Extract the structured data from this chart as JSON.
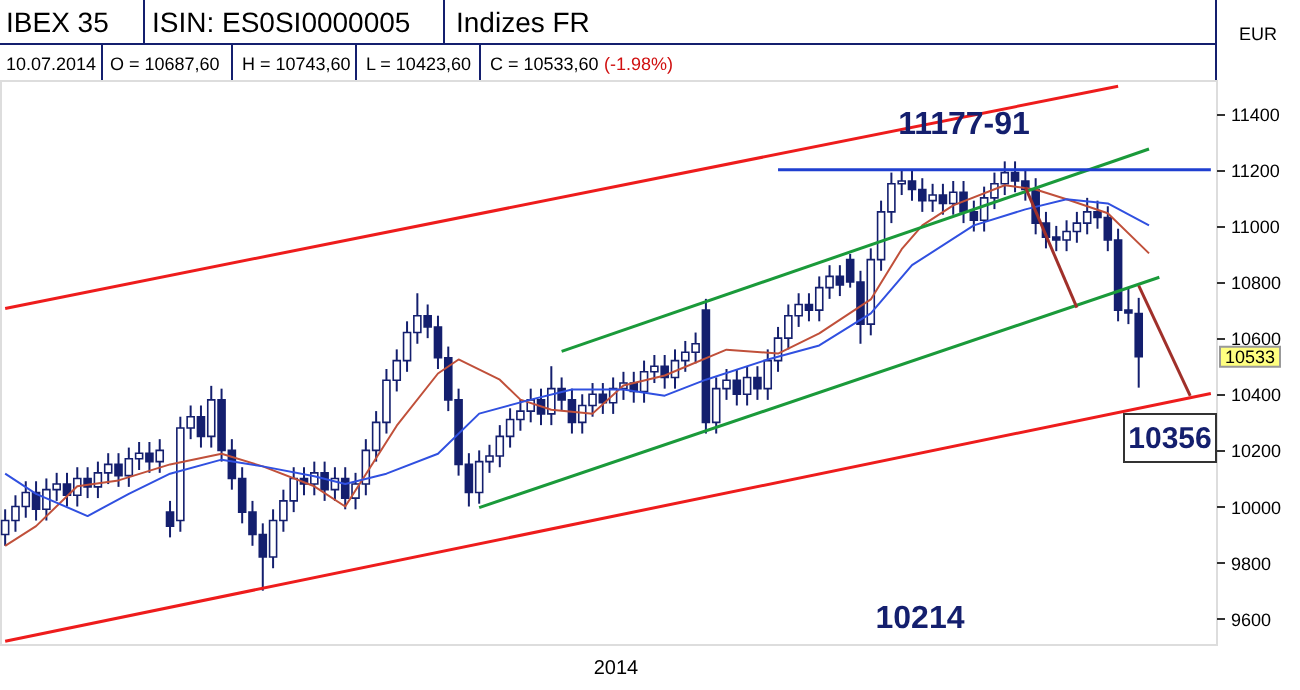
{
  "chart_data": {
    "type": "candlestick",
    "title": "IBEX 35",
    "subtitle": "ISIN: ES0SI0000005",
    "ylabel": "EUR",
    "annotations": [
      "Indizes FR",
      "10.07.2014",
      "O = 10687,60",
      "H = 10743,60",
      "L = 10423,60",
      "C = 10533,60",
      "(-1.98%)",
      "11177-91",
      "10356",
      "10214",
      "10533",
      "2014"
    ],
    "categories": [
      null,
      null,
      null,
      null,
      null,
      null,
      null,
      null,
      null,
      null,
      null,
      null,
      null,
      null,
      null,
      null,
      null,
      null,
      null,
      null,
      null,
      null,
      null,
      null,
      null,
      null,
      null,
      null,
      null,
      null,
      null,
      null,
      null,
      null,
      null,
      null,
      null,
      null,
      null,
      null,
      null,
      null,
      null,
      null,
      null,
      null,
      null,
      null,
      null,
      null,
      null,
      null,
      null,
      null,
      null,
      null,
      null,
      null,
      null,
      null,
      null,
      null,
      null,
      null,
      null,
      null,
      null,
      null,
      null,
      null,
      null,
      null,
      null,
      null,
      null,
      null,
      null,
      null,
      null,
      null,
      null,
      null,
      null,
      null,
      null,
      null,
      null,
      null,
      null,
      null,
      null,
      null,
      null,
      null,
      null,
      null,
      null,
      null,
      null,
      null,
      null,
      null,
      null,
      null,
      null,
      null,
      null,
      null,
      null,
      null,
      null,
      null,
      null,
      null,
      null,
      null,
      null,
      null
    ],
    "ohlc": [
      [
        9900,
        9990,
        9860,
        9950
      ],
      [
        9950,
        10040,
        9910,
        10000
      ],
      [
        10000,
        10090,
        9960,
        10050
      ],
      [
        10050,
        10090,
        9950,
        9990
      ],
      [
        9990,
        10100,
        9950,
        10060
      ],
      [
        10060,
        10120,
        10020,
        10080
      ],
      [
        10080,
        10120,
        10000,
        10040
      ],
      [
        10040,
        10140,
        10000,
        10100
      ],
      [
        10100,
        10140,
        10030,
        10070
      ],
      [
        10070,
        10160,
        10030,
        10120
      ],
      [
        10120,
        10190,
        10080,
        10150
      ],
      [
        10150,
        10190,
        10070,
        10110
      ],
      [
        10110,
        10210,
        10070,
        10170
      ],
      [
        10170,
        10230,
        10130,
        10190
      ],
      [
        10190,
        10230,
        10120,
        10160
      ],
      [
        10160,
        10240,
        10120,
        10200
      ],
      [
        9980,
        10020,
        9890,
        9930
      ],
      [
        9950,
        10320,
        9910,
        10280
      ],
      [
        10280,
        10360,
        10240,
        10320
      ],
      [
        10320,
        10360,
        10210,
        10250
      ],
      [
        10250,
        10430,
        10210,
        10380
      ],
      [
        10380,
        10420,
        10160,
        10200
      ],
      [
        10200,
        10240,
        10060,
        10100
      ],
      [
        10100,
        10140,
        9940,
        9980
      ],
      [
        9980,
        10020,
        9860,
        9900
      ],
      [
        9900,
        9940,
        9700,
        9820
      ],
      [
        9820,
        9990,
        9780,
        9950
      ],
      [
        9950,
        10060,
        9910,
        10020
      ],
      [
        10020,
        10140,
        9980,
        10100
      ],
      [
        10100,
        10140,
        10040,
        10080
      ],
      [
        10080,
        10160,
        10040,
        10120
      ],
      [
        10120,
        10160,
        10020,
        10060
      ],
      [
        10060,
        10140,
        10020,
        10100
      ],
      [
        10100,
        10140,
        9990,
        10030
      ],
      [
        10030,
        10120,
        9990,
        10080
      ],
      [
        10080,
        10240,
        10040,
        10200
      ],
      [
        10200,
        10340,
        10160,
        10300
      ],
      [
        10300,
        10490,
        10260,
        10450
      ],
      [
        10450,
        10560,
        10410,
        10520
      ],
      [
        10520,
        10660,
        10480,
        10620
      ],
      [
        10620,
        10760,
        10580,
        10680
      ],
      [
        10680,
        10720,
        10600,
        10640
      ],
      [
        10640,
        10680,
        10490,
        10530
      ],
      [
        10530,
        10570,
        10340,
        10380
      ],
      [
        10380,
        10420,
        10110,
        10150
      ],
      [
        10150,
        10190,
        10000,
        10050
      ],
      [
        10050,
        10200,
        10010,
        10160
      ],
      [
        10160,
        10220,
        10120,
        10180
      ],
      [
        10180,
        10290,
        10140,
        10250
      ],
      [
        10250,
        10350,
        10210,
        10310
      ],
      [
        10310,
        10380,
        10270,
        10340
      ],
      [
        10340,
        10420,
        10300,
        10380
      ],
      [
        10380,
        10420,
        10290,
        10330
      ],
      [
        10330,
        10500,
        10290,
        10420
      ],
      [
        10420,
        10460,
        10340,
        10380
      ],
      [
        10380,
        10420,
        10260,
        10300
      ],
      [
        10300,
        10400,
        10260,
        10360
      ],
      [
        10360,
        10440,
        10320,
        10400
      ],
      [
        10400,
        10440,
        10330,
        10370
      ],
      [
        10370,
        10460,
        10330,
        10420
      ],
      [
        10420,
        10480,
        10380,
        10440
      ],
      [
        10440,
        10480,
        10370,
        10410
      ],
      [
        10410,
        10520,
        10370,
        10480
      ],
      [
        10480,
        10540,
        10440,
        10500
      ],
      [
        10500,
        10540,
        10420,
        10460
      ],
      [
        10460,
        10560,
        10420,
        10520
      ],
      [
        10520,
        10590,
        10480,
        10550
      ],
      [
        10550,
        10620,
        10510,
        10580
      ],
      [
        10700,
        10740,
        10260,
        10300
      ],
      [
        10300,
        10460,
        10260,
        10420
      ],
      [
        10420,
        10490,
        10380,
        10450
      ],
      [
        10450,
        10490,
        10360,
        10400
      ],
      [
        10400,
        10500,
        10360,
        10460
      ],
      [
        10460,
        10500,
        10380,
        10420
      ],
      [
        10420,
        10560,
        10380,
        10520
      ],
      [
        10520,
        10640,
        10480,
        10600
      ],
      [
        10600,
        10720,
        10560,
        10680
      ],
      [
        10680,
        10760,
        10640,
        10720
      ],
      [
        10720,
        10760,
        10660,
        10700
      ],
      [
        10700,
        10820,
        10660,
        10780
      ],
      [
        10780,
        10860,
        10740,
        10820
      ],
      [
        10820,
        10860,
        10750,
        10790
      ],
      [
        10880,
        10900,
        10780,
        10800
      ],
      [
        10800,
        10840,
        10580,
        10650
      ],
      [
        10650,
        10920,
        10610,
        10880
      ],
      [
        10880,
        11090,
        10840,
        11050
      ],
      [
        11050,
        11190,
        11010,
        11150
      ],
      [
        11150,
        11200,
        11110,
        11160
      ],
      [
        11160,
        11200,
        11090,
        11130
      ],
      [
        11130,
        11170,
        11050,
        11090
      ],
      [
        11090,
        11150,
        11050,
        11110
      ],
      [
        11110,
        11150,
        11040,
        11080
      ],
      [
        11080,
        11160,
        11040,
        11120
      ],
      [
        11120,
        11160,
        11010,
        11050
      ],
      [
        11050,
        11090,
        10980,
        11020
      ],
      [
        11020,
        11140,
        10980,
        11100
      ],
      [
        11100,
        11190,
        11060,
        11150
      ],
      [
        11150,
        11230,
        11110,
        11190
      ],
      [
        11190,
        11230,
        11120,
        11160
      ],
      [
        11160,
        11200,
        11090,
        11130
      ],
      [
        11130,
        11170,
        10970,
        11010
      ],
      [
        11010,
        11050,
        10920,
        10960
      ],
      [
        10960,
        11000,
        10910,
        10950
      ],
      [
        10950,
        11020,
        10910,
        10980
      ],
      [
        10980,
        11050,
        10940,
        11010
      ],
      [
        11010,
        11100,
        10970,
        11050
      ],
      [
        11050,
        11090,
        10990,
        11030
      ],
      [
        11030,
        11070,
        10910,
        10950
      ],
      [
        10950,
        10990,
        10660,
        10700
      ],
      [
        10700,
        10780,
        10650,
        10690
      ],
      [
        10687.6,
        10743.6,
        10423.6,
        10533.6
      ],
      null,
      null,
      null,
      null,
      null,
      null,
      null
    ],
    "series": [
      {
        "type": "line",
        "color": "#c0503a",
        "values": [
          9860,
          null,
          null,
          9930,
          null,
          null,
          null,
          10072,
          null,
          null,
          null,
          10093,
          null,
          null,
          null,
          null,
          10150,
          null,
          null,
          null,
          null,
          10188,
          null,
          null,
          null,
          10143,
          null,
          null,
          null,
          null,
          10072,
          null,
          null,
          10000,
          null,
          10115,
          null,
          null,
          10288,
          null,
          null,
          null,
          10474,
          null,
          10524,
          null,
          null,
          null,
          10452,
          null,
          10381,
          null,
          null,
          10345,
          null,
          null,
          null,
          10331,
          null,
          null,
          10431,
          null,
          null,
          null,
          10467,
          null,
          null,
          null,
          null,
          null,
          10559,
          null,
          null,
          null,
          null,
          10545,
          null,
          null,
          null,
          10617,
          null,
          null,
          null,
          null,
          10738,
          null,
          null,
          10917,
          null,
          11002,
          null,
          null,
          11073,
          null,
          null,
          null,
          null,
          11145,
          null,
          null,
          11130,
          null,
          null,
          11095,
          null,
          null,
          null,
          11045,
          null,
          null,
          null,
          10902,
          null,
          null,
          null,
          null,
          null,
          null
        ]
      },
      {
        "type": "line",
        "color": "#3050e0",
        "values": [
          10117,
          null,
          null,
          10045,
          null,
          null,
          null,
          null,
          9966,
          null,
          null,
          null,
          10045,
          null,
          null,
          null,
          10117,
          null,
          null,
          null,
          null,
          10167,
          null,
          null,
          null,
          10143,
          null,
          null,
          null,
          null,
          10108,
          null,
          null,
          10080,
          null,
          null,
          null,
          10117,
          null,
          null,
          null,
          null,
          10188,
          null,
          null,
          null,
          10331,
          null,
          null,
          null,
          null,
          10381,
          null,
          null,
          null,
          10417,
          null,
          null,
          null,
          null,
          10417,
          null,
          null,
          null,
          10395,
          null,
          null,
          null,
          10452,
          null,
          null,
          null,
          null,
          null,
          10524,
          null,
          null,
          null,
          null,
          10574,
          null,
          null,
          null,
          null,
          10688,
          null,
          null,
          null,
          10860,
          null,
          null,
          null,
          null,
          null,
          11002,
          null,
          null,
          null,
          null,
          11059,
          null,
          null,
          null,
          11095,
          null,
          null,
          null,
          11080,
          null,
          null,
          null,
          11002,
          null,
          null,
          null,
          null,
          null,
          null
        ]
      },
      {
        "type": "line",
        "color": "#ee1c1c",
        "values": [
          10706,
          null,
          null,
          null,
          null,
          null,
          null,
          null,
          null,
          null,
          null,
          null,
          null,
          null,
          null,
          null,
          null,
          null,
          null,
          null,
          null,
          null,
          null,
          null,
          null,
          null,
          null,
          null,
          null,
          null,
          null,
          null,
          null,
          null,
          null,
          null,
          null,
          null,
          null,
          null,
          null,
          null,
          null,
          null,
          null,
          null,
          null,
          null,
          null,
          null,
          null,
          null,
          null,
          null,
          null,
          null,
          null,
          null,
          null,
          null,
          null,
          null,
          null,
          null,
          null,
          null,
          null,
          null,
          null,
          null,
          null,
          null,
          null,
          null,
          null,
          null,
          null,
          null,
          null,
          null,
          null,
          null,
          null,
          null,
          null,
          null,
          null,
          null,
          null,
          null,
          null,
          null,
          null,
          null,
          null,
          null,
          null,
          null,
          null,
          null,
          null,
          null,
          null,
          null,
          null,
          null,
          null,
          null,
          11498,
          null,
          null,
          null,
          null,
          null,
          null,
          null,
          null,
          null
        ]
      },
      {
        "type": "line",
        "color": "#ee1c1c",
        "values": [
          9520,
          null,
          null,
          null,
          null,
          null,
          null,
          null,
          null,
          null,
          null,
          null,
          null,
          null,
          null,
          null,
          null,
          null,
          null,
          null,
          null,
          null,
          null,
          null,
          null,
          null,
          null,
          null,
          null,
          null,
          null,
          null,
          null,
          null,
          null,
          null,
          null,
          null,
          null,
          null,
          null,
          null,
          null,
          null,
          null,
          null,
          null,
          null,
          null,
          null,
          null,
          null,
          null,
          null,
          null,
          null,
          null,
          null,
          null,
          null,
          null,
          null,
          null,
          null,
          null,
          null,
          null,
          null,
          null,
          null,
          null,
          null,
          null,
          null,
          null,
          null,
          null,
          null,
          null,
          null,
          null,
          null,
          null,
          null,
          null,
          null,
          null,
          null,
          null,
          null,
          null,
          null,
          null,
          null,
          null,
          null,
          null,
          null,
          null,
          null,
          null,
          null,
          null,
          null,
          null,
          null,
          null,
          null,
          null,
          null,
          null,
          null,
          null,
          null,
          null,
          null,
          null,
          10403
        ]
      },
      {
        "type": "line",
        "color": "#1a9a3a",
        "values": [
          null,
          null,
          null,
          null,
          null,
          null,
          null,
          null,
          null,
          null,
          null,
          null,
          null,
          null,
          null,
          null,
          null,
          null,
          null,
          null,
          null,
          null,
          null,
          null,
          null,
          null,
          null,
          null,
          null,
          null,
          null,
          null,
          null,
          null,
          null,
          null,
          null,
          null,
          null,
          null,
          null,
          null,
          null,
          null,
          null,
          null,
          9996,
          null,
          null,
          null,
          null,
          null,
          null,
          null,
          null,
          null,
          null,
          null,
          null,
          null,
          null,
          null,
          null,
          null,
          null,
          null,
          null,
          null,
          null,
          null,
          null,
          null,
          null,
          null,
          null,
          null,
          null,
          null,
          null,
          null,
          null,
          null,
          null,
          null,
          null,
          null,
          null,
          null,
          null,
          null,
          null,
          null,
          null,
          null,
          null,
          null,
          null,
          null,
          null,
          null,
          null,
          null,
          null,
          null,
          null,
          null,
          null,
          null,
          null,
          null,
          null,
          null,
          10817,
          null,
          null,
          null,
          null,
          null
        ]
      },
      {
        "type": "line",
        "color": "#1a9a3a",
        "values": [
          null,
          null,
          null,
          null,
          null,
          null,
          null,
          null,
          null,
          null,
          null,
          null,
          null,
          null,
          null,
          null,
          null,
          null,
          null,
          null,
          null,
          null,
          null,
          null,
          null,
          null,
          null,
          null,
          null,
          null,
          null,
          null,
          null,
          null,
          null,
          null,
          null,
          null,
          null,
          null,
          null,
          null,
          null,
          null,
          null,
          null,
          null,
          null,
          null,
          null,
          null,
          null,
          null,
          null,
          10553,
          null,
          null,
          null,
          null,
          null,
          null,
          null,
          null,
          null,
          null,
          null,
          null,
          null,
          null,
          null,
          null,
          null,
          null,
          null,
          null,
          null,
          null,
          null,
          null,
          null,
          null,
          null,
          null,
          null,
          null,
          null,
          null,
          null,
          null,
          null,
          null,
          null,
          null,
          null,
          null,
          null,
          null,
          null,
          null,
          null,
          null,
          null,
          null,
          null,
          null,
          null,
          null,
          null,
          null,
          null,
          null,
          11274,
          null,
          null,
          null,
          null,
          null,
          null
        ]
      },
      {
        "type": "line",
        "color": "#1f3fd0",
        "values": [
          null,
          null,
          null,
          null,
          null,
          null,
          null,
          null,
          null,
          null,
          null,
          null,
          null,
          null,
          null,
          null,
          null,
          null,
          null,
          null,
          null,
          null,
          null,
          null,
          null,
          null,
          null,
          null,
          null,
          null,
          null,
          null,
          null,
          null,
          null,
          null,
          null,
          null,
          null,
          null,
          null,
          null,
          null,
          null,
          null,
          null,
          null,
          null,
          null,
          null,
          null,
          null,
          null,
          null,
          null,
          null,
          null,
          null,
          null,
          null,
          null,
          null,
          null,
          null,
          null,
          null,
          null,
          null,
          null,
          null,
          null,
          null,
          null,
          null,
          null,
          11200,
          null,
          null,
          null,
          null,
          null,
          null,
          null,
          null,
          null,
          null,
          null,
          null,
          null,
          null,
          null,
          null,
          null,
          null,
          null,
          null,
          null,
          null,
          null,
          null,
          null,
          null,
          null,
          null,
          null,
          null,
          null,
          null,
          null,
          null,
          null,
          null,
          null,
          null,
          null,
          null,
          null,
          11200
        ]
      },
      {
        "type": "line",
        "color": "#a0302a",
        "values": [
          null,
          null,
          null,
          null,
          null,
          null,
          null,
          null,
          null,
          null,
          null,
          null,
          null,
          null,
          null,
          null,
          null,
          null,
          null,
          null,
          null,
          null,
          null,
          null,
          null,
          null,
          null,
          null,
          null,
          null,
          null,
          null,
          null,
          null,
          null,
          null,
          null,
          null,
          null,
          null,
          null,
          null,
          null,
          null,
          null,
          null,
          null,
          null,
          null,
          null,
          null,
          null,
          null,
          null,
          null,
          null,
          null,
          null,
          null,
          null,
          null,
          null,
          null,
          null,
          null,
          null,
          null,
          null,
          null,
          null,
          null,
          null,
          null,
          null,
          null,
          null,
          null,
          null,
          null,
          null,
          null,
          null,
          null,
          null,
          null,
          null,
          null,
          null,
          null,
          null,
          null,
          null,
          null,
          null,
          null,
          null,
          null,
          null,
          null,
          11138,
          null,
          null,
          null,
          null,
          10709,
          null,
          null,
          null,
          null,
          null,
          null,
          null,
          null,
          null,
          null,
          null,
          null,
          null
        ]
      },
      {
        "type": "line",
        "color": "#a0302a",
        "values": [
          null,
          null,
          null,
          null,
          null,
          null,
          null,
          null,
          null,
          null,
          null,
          null,
          null,
          null,
          null,
          null,
          null,
          null,
          null,
          null,
          null,
          null,
          null,
          null,
          null,
          null,
          null,
          null,
          null,
          null,
          null,
          null,
          null,
          null,
          null,
          null,
          null,
          null,
          null,
          null,
          null,
          null,
          null,
          null,
          null,
          null,
          null,
          null,
          null,
          null,
          null,
          null,
          null,
          null,
          null,
          null,
          null,
          null,
          null,
          null,
          null,
          null,
          null,
          null,
          null,
          null,
          null,
          null,
          null,
          null,
          null,
          null,
          null,
          null,
          null,
          null,
          null,
          null,
          null,
          null,
          null,
          null,
          null,
          null,
          null,
          null,
          null,
          null,
          null,
          null,
          null,
          null,
          null,
          null,
          null,
          null,
          null,
          null,
          null,
          null,
          null,
          null,
          null,
          null,
          null,
          null,
          null,
          null,
          null,
          null,
          10787,
          null,
          null,
          null,
          null,
          10394,
          null,
          null
        ]
      }
    ],
    "ylim": [
      9510,
      11520
    ],
    "yticks": [
      9600,
      9800,
      10000,
      10200,
      10400,
      10600,
      10800,
      11000,
      11200,
      11400
    ],
    "grid": false
  }
}
